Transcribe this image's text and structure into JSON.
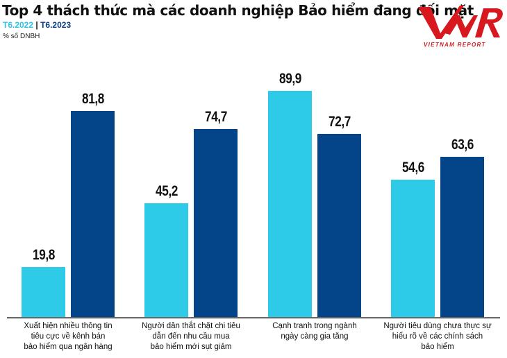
{
  "header": {
    "title": "Top 4 thách thức mà các doanh nghiệp Bảo hiểm đang đối mặt",
    "legend_year1": "T6.2022",
    "legend_separator": "|",
    "legend_year2": "T6.2023",
    "unit": "% số DNBH"
  },
  "logo": {
    "mark": "VNR",
    "text": "VIETNAM REPORT"
  },
  "colors": {
    "series1": "#2ecbe8",
    "series2": "#044589",
    "logo_red": "#d7191f"
  },
  "chart_data": {
    "type": "bar",
    "title": "Top 4 thách thức mà các doanh nghiệp Bảo hiểm đang đối mặt",
    "subtitle": "T6.2022 | T6.2023",
    "ylabel": "% số DNBH",
    "xlabel": "",
    "categories": [
      "Xuất hiện nhiều thông tin tiêu cực về kênh bán bảo hiểm qua ngân hàng",
      "Người dân thắt chặt chi tiêu dẫn đến nhu cầu mua bảo hiểm mới sụt giảm",
      "Cạnh tranh trong ngành ngày càng gia tăng",
      "Người tiêu dùng chưa thực sự hiểu rõ về các chính sách bảo hiểm"
    ],
    "series": [
      {
        "name": "T6.2022",
        "values": [
          19.8,
          45.2,
          89.9,
          54.6
        ],
        "labels": [
          "19,8",
          "45,2",
          "89,9",
          "54,6"
        ]
      },
      {
        "name": "T6.2023",
        "values": [
          81.8,
          74.7,
          72.7,
          63.6
        ],
        "labels": [
          "81,8",
          "74,7",
          "72,7",
          "63,6"
        ]
      }
    ],
    "ylim": [
      0,
      100
    ],
    "grid": false,
    "legend_position": "top-left (in subtitle)"
  },
  "categories_display": [
    [
      "Xuất hiện nhiều thông tin",
      "tiêu cực về kênh bán",
      "bảo hiểm qua ngân hàng"
    ],
    [
      "Người dân thắt chặt chi tiêu",
      "dẫn đến nhu cầu mua",
      "bảo hiểm mới sụt giảm"
    ],
    [
      "Cạnh tranh trong ngành",
      "ngày càng gia tăng"
    ],
    [
      "Người tiêu dùng chưa thực sự",
      "hiểu rõ về các chính sách",
      "bảo hiểm"
    ]
  ]
}
